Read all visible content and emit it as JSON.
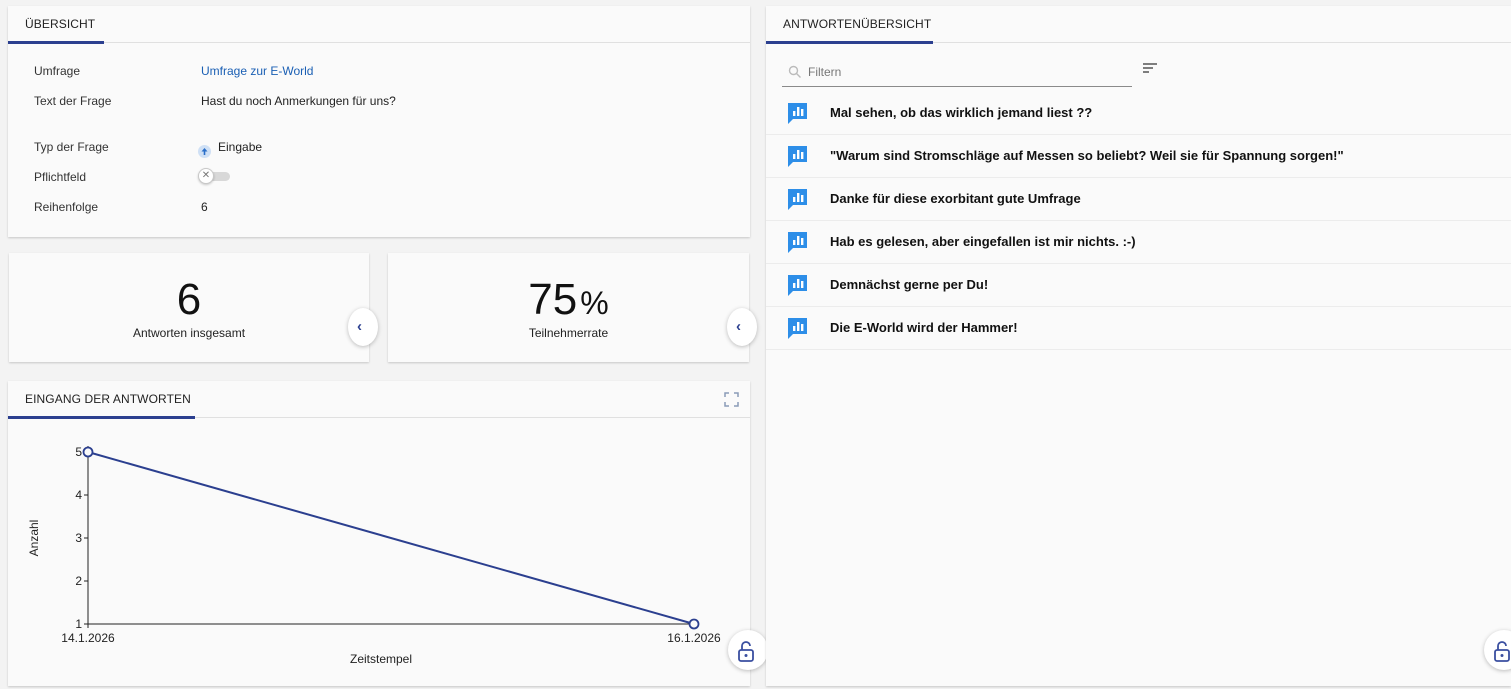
{
  "overview": {
    "tab_label": "ÜBERSICHT",
    "rows": [
      {
        "label": "Umfrage",
        "value": "Umfrage zur E-World"
      },
      {
        "label": "Text der Frage",
        "value": "Hast du noch Anmerkungen für uns?"
      },
      {
        "label": "Typ der Frage",
        "value": "Eingabe"
      },
      {
        "label": "Pflichtfeld",
        "value": ""
      },
      {
        "label": "Reihenfolge",
        "value": "6"
      }
    ],
    "required": false
  },
  "stats": {
    "total": {
      "value": "6",
      "label": "Antworten insgesamt"
    },
    "rate": {
      "value": "75",
      "unit": "%",
      "label": "Teilnehmerrate"
    }
  },
  "chart_panel": {
    "tab_label": "EINGANG DER ANTWORTEN"
  },
  "chart_data": {
    "type": "line",
    "x": [
      "14.1.2026",
      "16.1.2026"
    ],
    "values": [
      5,
      1
    ],
    "xlabel": "Zeitstempel",
    "ylabel": "Anzahl",
    "ylim": [
      1,
      5
    ],
    "yticks": [
      "1",
      "2",
      "3",
      "4",
      "5"
    ],
    "color": "#2b3f8f"
  },
  "answers_panel": {
    "tab_label": "ANTWORTENÜBERSICHT",
    "filter_placeholder": "Filtern",
    "items": [
      "Mal sehen, ob das wirklich jemand liest ??",
      "\"Warum sind Stromschläge auf Messen so beliebt? Weil sie für Spannung sorgen!\"",
      "Danke für diese exorbitant gute Umfrage",
      "Hab es gelesen, aber eingefallen ist mir nichts. :-)",
      "Demnächst gerne per Du!",
      "Die E-World wird der Hammer!"
    ]
  },
  "colors": {
    "accent": "#2b3f8f",
    "answer_icon": "#2d8ee8",
    "link": "#1a5fb4"
  }
}
